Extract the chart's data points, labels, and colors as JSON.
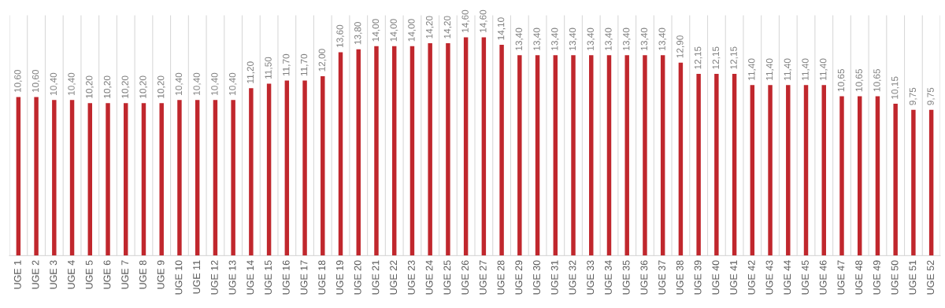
{
  "chart_data": {
    "type": "bar",
    "categories": [
      "UGE 1",
      "UGE 2",
      "UGE 3",
      "UGE 4",
      "UGE 5",
      "UGE 6",
      "UGE 7",
      "UGE 8",
      "UGE 9",
      "UGE 10",
      "UGE 11",
      "UGE 12",
      "UGE 13",
      "UGE 14",
      "UGE 15",
      "UGE 16",
      "UGE 17",
      "UGE 18",
      "UGE 19",
      "UGE 20",
      "UGE 21",
      "UGE 22",
      "UGE 23",
      "UGE 24",
      "UGE 25",
      "UGE 26",
      "UGE 27",
      "UGE 28",
      "UGE 29",
      "UGE 30",
      "UGE 31",
      "UGE 32",
      "UGE 33",
      "UGE 34",
      "UGE 35",
      "UGE 36",
      "UGE 37",
      "UGE 38",
      "UGE 39",
      "UGE 40",
      "UGE 41",
      "UGE 42",
      "UGE 43",
      "UGE 44",
      "UGE 45",
      "UGE 46",
      "UGE 47",
      "UGE 48",
      "UGE 49",
      "UGE 50",
      "UGE 51",
      "UGE 52"
    ],
    "values": [
      10.6,
      10.6,
      10.4,
      10.4,
      10.2,
      10.2,
      10.2,
      10.2,
      10.2,
      10.4,
      10.4,
      10.4,
      10.4,
      11.2,
      11.5,
      11.7,
      11.7,
      12.0,
      13.6,
      13.8,
      14.0,
      14.0,
      14.0,
      14.2,
      14.2,
      14.6,
      14.6,
      14.1,
      13.4,
      13.4,
      13.4,
      13.4,
      13.4,
      13.4,
      13.4,
      13.4,
      13.4,
      12.9,
      12.15,
      12.15,
      12.15,
      11.4,
      11.4,
      11.4,
      11.4,
      11.4,
      10.65,
      10.65,
      10.65,
      10.15,
      9.75,
      9.75
    ],
    "value_labels": [
      "10,60",
      "10,60",
      "10,40",
      "10,40",
      "10,20",
      "10,20",
      "10,20",
      "10,20",
      "10,20",
      "10,40",
      "10,40",
      "10,40",
      "10,40",
      "11,20",
      "11,50",
      "11,70",
      "11,70",
      "12,00",
      "13,60",
      "13,80",
      "14,00",
      "14,00",
      "14,00",
      "14,20",
      "14,20",
      "14,60",
      "14,60",
      "14,10",
      "13,40",
      "13,40",
      "13,40",
      "13,40",
      "13,40",
      "13,40",
      "13,40",
      "13,40",
      "13,40",
      "12,90",
      "12,15",
      "12,15",
      "12,15",
      "11,40",
      "11,40",
      "11,40",
      "11,40",
      "11,40",
      "10,65",
      "10,65",
      "10,65",
      "10,15",
      "9,75",
      "9,75"
    ],
    "color": "#c0272d",
    "grid": "x",
    "legend": false
  }
}
